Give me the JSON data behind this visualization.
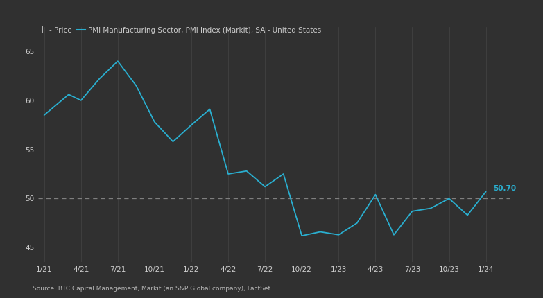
{
  "legend_price_label": "- Price",
  "legend_line_label": "PMI Manufacturing Sector, PMI Index (Markit), SA - United States",
  "source_text": "Source: BTC Capital Management, Markit (an S&P Global company), FactSet.",
  "background_color": "#303030",
  "line_color": "#2aafd0",
  "dashed_line_color": "#888888",
  "text_color": "#cccccc",
  "grid_color": "#4a4a4a",
  "yticks": [
    45,
    50,
    55,
    60,
    65
  ],
  "ylim": [
    43.5,
    67.5
  ],
  "dashed_y": 50,
  "last_value_label": "50.70",
  "xtick_labels": [
    "1/21",
    "4/21",
    "7/21",
    "10/21",
    "1/22",
    "4/22",
    "7/22",
    "10/22",
    "1/23",
    "4/23",
    "7/23",
    "10/23",
    "1/24"
  ],
  "x_ticks": [
    0,
    3,
    6,
    9,
    12,
    15,
    18,
    21,
    24,
    27,
    30,
    33,
    36
  ],
  "x_data": [
    0,
    2,
    3,
    4.5,
    6,
    7.5,
    9,
    10.5,
    12,
    13.5,
    15,
    16.5,
    18,
    19.5,
    21,
    22.5,
    24,
    25.5,
    27,
    28.5,
    30,
    31.5,
    33,
    34.5,
    36
  ],
  "y_data": [
    58.5,
    60.6,
    60.0,
    62.2,
    64.0,
    61.5,
    57.8,
    55.8,
    57.5,
    59.1,
    52.5,
    52.8,
    51.2,
    52.5,
    46.2,
    46.6,
    46.3,
    47.5,
    50.4,
    46.3,
    48.7,
    49.0,
    50.0,
    48.3,
    50.7
  ],
  "xlim": [
    -0.5,
    38.0
  ]
}
